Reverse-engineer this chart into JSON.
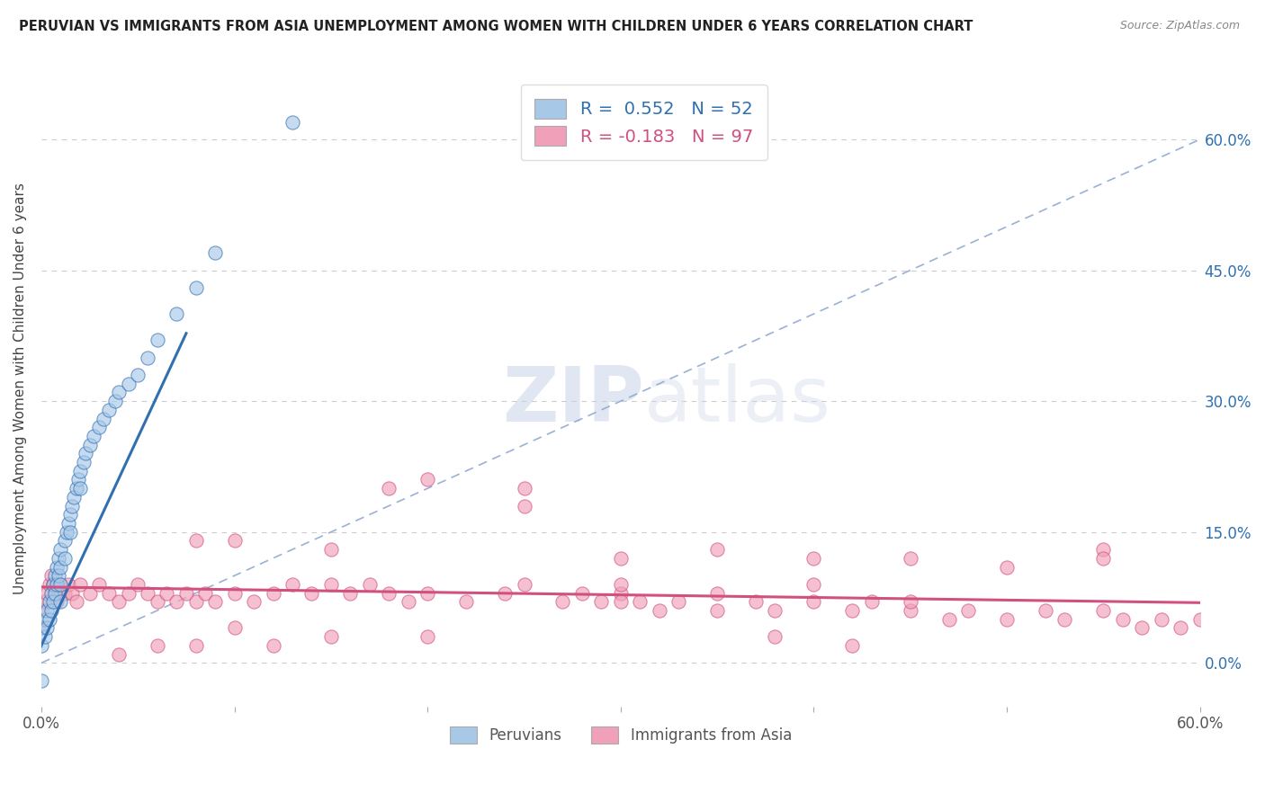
{
  "title": "PERUVIAN VS IMMIGRANTS FROM ASIA UNEMPLOYMENT AMONG WOMEN WITH CHILDREN UNDER 6 YEARS CORRELATION CHART",
  "source": "Source: ZipAtlas.com",
  "ylabel": "Unemployment Among Women with Children Under 6 years",
  "legend_label1": "R =  0.552   N = 52",
  "legend_label2": "R = -0.183   N = 97",
  "legend_bottom_label1": "Peruvians",
  "legend_bottom_label2": "Immigrants from Asia",
  "color_peruvian": "#a8c8e8",
  "color_asia": "#f0a0b8",
  "color_peruvian_line": "#3070b0",
  "color_asia_line": "#d05080",
  "color_diag": "#90a8d0",
  "watermark_zip": "ZIP",
  "watermark_atlas": "atlas",
  "background_color": "#ffffff",
  "xlim": [
    0.0,
    0.6
  ],
  "ylim": [
    -0.05,
    0.68
  ],
  "ytick_vals": [
    0.0,
    0.15,
    0.3,
    0.45,
    0.6
  ],
  "ytick_labels": [
    "0.0%",
    "15.0%",
    "30.0%",
    "45.0%",
    "60.0%"
  ],
  "peruvian_x": [
    0.0,
    0.0,
    0.0,
    0.002,
    0.002,
    0.003,
    0.003,
    0.004,
    0.004,
    0.005,
    0.005,
    0.006,
    0.006,
    0.007,
    0.007,
    0.008,
    0.008,
    0.009,
    0.009,
    0.01,
    0.01,
    0.01,
    0.01,
    0.012,
    0.012,
    0.013,
    0.014,
    0.015,
    0.015,
    0.016,
    0.017,
    0.018,
    0.019,
    0.02,
    0.02,
    0.022,
    0.023,
    0.025,
    0.027,
    0.03,
    0.032,
    0.035,
    0.038,
    0.04,
    0.045,
    0.05,
    0.055,
    0.06,
    0.07,
    0.08,
    0.09,
    0.13
  ],
  "peruvian_y": [
    0.04,
    0.02,
    -0.02,
    0.05,
    0.03,
    0.06,
    0.04,
    0.07,
    0.05,
    0.08,
    0.06,
    0.09,
    0.07,
    0.1,
    0.08,
    0.11,
    0.09,
    0.12,
    0.1,
    0.13,
    0.11,
    0.09,
    0.07,
    0.14,
    0.12,
    0.15,
    0.16,
    0.17,
    0.15,
    0.18,
    0.19,
    0.2,
    0.21,
    0.22,
    0.2,
    0.23,
    0.24,
    0.25,
    0.26,
    0.27,
    0.28,
    0.29,
    0.3,
    0.31,
    0.32,
    0.33,
    0.35,
    0.37,
    0.4,
    0.43,
    0.47,
    0.62
  ],
  "asia_x": [
    0.0,
    0.0,
    0.002,
    0.003,
    0.004,
    0.005,
    0.006,
    0.007,
    0.008,
    0.009,
    0.01,
    0.012,
    0.014,
    0.016,
    0.018,
    0.02,
    0.025,
    0.03,
    0.035,
    0.04,
    0.045,
    0.05,
    0.055,
    0.06,
    0.065,
    0.07,
    0.075,
    0.08,
    0.085,
    0.09,
    0.1,
    0.11,
    0.12,
    0.13,
    0.14,
    0.15,
    0.16,
    0.17,
    0.18,
    0.19,
    0.2,
    0.22,
    0.24,
    0.25,
    0.27,
    0.28,
    0.29,
    0.3,
    0.31,
    0.32,
    0.33,
    0.35,
    0.37,
    0.38,
    0.4,
    0.42,
    0.43,
    0.45,
    0.47,
    0.48,
    0.5,
    0.52,
    0.53,
    0.55,
    0.56,
    0.57,
    0.58,
    0.59,
    0.6,
    0.18,
    0.25,
    0.3,
    0.35,
    0.4,
    0.45,
    0.5,
    0.55,
    0.1,
    0.15,
    0.2,
    0.08,
    0.12,
    0.06,
    0.04,
    0.08,
    0.1,
    0.15,
    0.2,
    0.25,
    0.3,
    0.35,
    0.4,
    0.45,
    0.38,
    0.42,
    0.3,
    0.55
  ],
  "asia_y": [
    0.06,
    0.04,
    0.07,
    0.08,
    0.09,
    0.1,
    0.09,
    0.08,
    0.07,
    0.08,
    0.09,
    0.08,
    0.09,
    0.08,
    0.07,
    0.09,
    0.08,
    0.09,
    0.08,
    0.07,
    0.08,
    0.09,
    0.08,
    0.07,
    0.08,
    0.07,
    0.08,
    0.07,
    0.08,
    0.07,
    0.08,
    0.07,
    0.08,
    0.09,
    0.08,
    0.09,
    0.08,
    0.09,
    0.08,
    0.07,
    0.08,
    0.07,
    0.08,
    0.09,
    0.07,
    0.08,
    0.07,
    0.08,
    0.07,
    0.06,
    0.07,
    0.06,
    0.07,
    0.06,
    0.07,
    0.06,
    0.07,
    0.06,
    0.05,
    0.06,
    0.05,
    0.06,
    0.05,
    0.06,
    0.05,
    0.04,
    0.05,
    0.04,
    0.05,
    0.2,
    0.18,
    0.12,
    0.13,
    0.12,
    0.12,
    0.11,
    0.13,
    0.04,
    0.03,
    0.03,
    0.02,
    0.02,
    0.02,
    0.01,
    0.14,
    0.14,
    0.13,
    0.21,
    0.2,
    0.07,
    0.08,
    0.09,
    0.07,
    0.03,
    0.02,
    0.09,
    0.12
  ]
}
